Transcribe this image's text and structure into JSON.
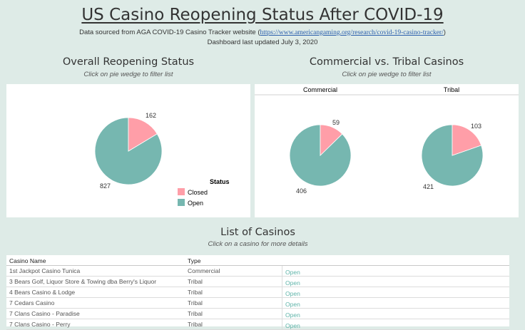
{
  "header": {
    "title": "US Casino Reopening Status After COVID-19",
    "source_prefix": "Data sourced from AGA COVID-19 Casino Tracker website (",
    "source_link": "https://www.americangaming.org/research/covid-19-casino-tracker/",
    "source_suffix": ")",
    "updated": "Dashboard last updated July 3, 2020"
  },
  "overall": {
    "heading": "Overall Reopening Status",
    "instruction": "Click on pie wedge to filter list"
  },
  "comparison": {
    "heading": "Commercial vs. Tribal Casinos",
    "instruction": "Click on pie wedge to filter list",
    "col_commercial": "Commercial",
    "col_tribal": "Tribal"
  },
  "legend": {
    "title": "Status",
    "closed": "Closed",
    "open": "Open"
  },
  "colors": {
    "closed": "#ff9ea8",
    "open": "#76b7b0",
    "link": "#5fb4a9"
  },
  "chart_data": [
    {
      "type": "pie",
      "title": "Overall Reopening Status",
      "labels": [
        "Closed",
        "Open"
      ],
      "values": [
        162,
        827
      ],
      "value_labels": [
        "162",
        "827"
      ]
    },
    {
      "type": "pie",
      "title": "Commercial",
      "labels": [
        "Closed",
        "Open"
      ],
      "values": [
        59,
        406
      ],
      "value_labels": [
        "59",
        "406"
      ]
    },
    {
      "type": "pie",
      "title": "Tribal",
      "labels": [
        "Closed",
        "Open"
      ],
      "values": [
        103,
        421
      ],
      "value_labels": [
        "103",
        "421"
      ]
    }
  ],
  "list": {
    "heading": "List of Casinos",
    "instruction": "Click on a casino for more details",
    "columns": [
      "Casino Name",
      "Type"
    ],
    "rows": [
      {
        "name": "1st Jackpot Casino Tunica",
        "type": "Commercial",
        "status": "Open"
      },
      {
        "name": "3 Bears Golf, Liquor Store & Towing dba Berry's Liquor",
        "type": "Tribal",
        "status": "Open"
      },
      {
        "name": "4 Bears Casino & Lodge",
        "type": "Tribal",
        "status": "Open"
      },
      {
        "name": "7 Cedars Casino",
        "type": "Tribal",
        "status": "Open"
      },
      {
        "name": "7 Clans Casino - Paradise",
        "type": "Tribal",
        "status": "Open"
      },
      {
        "name": "7 Clans Casino - Perry",
        "type": "Tribal",
        "status": "Open"
      }
    ]
  }
}
